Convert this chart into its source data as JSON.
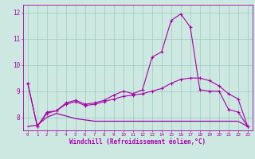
{
  "xlabel": "Windchill (Refroidissement éolien,°C)",
  "x": [
    0,
    1,
    2,
    3,
    4,
    5,
    6,
    7,
    8,
    9,
    10,
    11,
    12,
    13,
    14,
    15,
    16,
    17,
    18,
    19,
    20,
    21,
    22,
    23
  ],
  "line_spike": [
    9.3,
    7.65,
    8.2,
    8.25,
    8.55,
    8.65,
    8.5,
    8.55,
    8.65,
    8.85,
    9.0,
    8.9,
    9.05,
    10.3,
    10.5,
    11.7,
    11.95,
    11.45,
    9.05,
    9.0,
    9.0,
    8.3,
    8.2,
    7.65
  ],
  "line_smooth": [
    9.3,
    7.65,
    8.15,
    8.25,
    8.5,
    8.6,
    8.45,
    8.5,
    8.6,
    8.7,
    8.8,
    8.85,
    8.9,
    9.0,
    9.1,
    9.3,
    9.45,
    9.5,
    9.5,
    9.4,
    9.2,
    8.9,
    8.7,
    7.65
  ],
  "line_flat": [
    7.65,
    7.7,
    8.0,
    8.15,
    8.05,
    7.95,
    7.9,
    7.85,
    7.85,
    7.85,
    7.85,
    7.85,
    7.85,
    7.85,
    7.85,
    7.85,
    7.85,
    7.85,
    7.85,
    7.85,
    7.85,
    7.85,
    7.85,
    7.65
  ],
  "bg_color": "#cce8e0",
  "line_color": "#aa00aa",
  "grid_color": "#99ccbb",
  "ylim": [
    7.5,
    12.3
  ],
  "yticks": [
    8,
    9,
    10,
    11,
    12
  ],
  "xlim": [
    -0.5,
    23.5
  ],
  "xtick_labels": [
    "0",
    "1",
    "2",
    "3",
    "4",
    "5",
    "6",
    "7",
    "8",
    "9",
    "10",
    "11",
    "12",
    "13",
    "14",
    "15",
    "16",
    "17",
    "18",
    "19",
    "20",
    "21",
    "22",
    "23"
  ]
}
